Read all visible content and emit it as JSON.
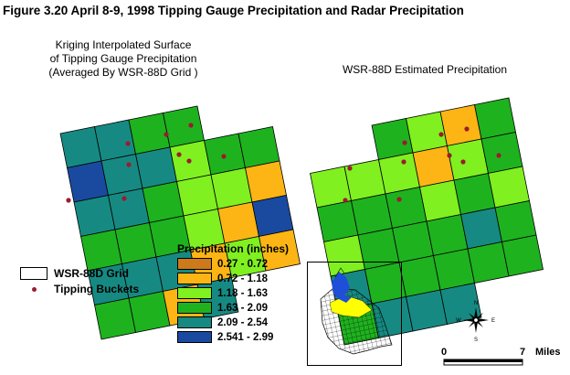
{
  "figure_title": "Figure 3.20    April 8-9, 1998 Tipping Gauge Precipitation and Radar Precipitation",
  "left_panel": {
    "label_lines": [
      "Kriging Interpolated Surface",
      "of Tipping Gauge Precipitation",
      "(Averaged By WSR-88D Grid )"
    ],
    "cells": [
      [
        "c",
        "c",
        "g",
        "g",
        "",
        ""
      ],
      [
        "n",
        "t",
        "t",
        "l",
        "g",
        "g"
      ],
      [
        "t",
        "t",
        "g",
        "l",
        "l",
        "y"
      ],
      [
        "g",
        "g",
        "g",
        "l",
        "y",
        "b"
      ],
      [
        "t",
        "t",
        "t",
        "y",
        "l",
        "y"
      ],
      [
        "g",
        "g",
        "y",
        "t",
        "",
        ""
      ]
    ]
  },
  "right_panel": {
    "label": "WSR-88D Estimated Precipitation",
    "cells": [
      [
        "",
        "",
        "g",
        "l",
        "y",
        "g"
      ],
      [
        "l",
        "l",
        "l",
        "y",
        "l",
        "g"
      ],
      [
        "g",
        "g",
        "g",
        "l",
        "g",
        "l"
      ],
      [
        "l",
        "g",
        "g",
        "g",
        "t",
        "g"
      ],
      [
        "t",
        "g",
        "g",
        "g",
        "g",
        "g"
      ],
      [
        "g",
        "t",
        "t",
        "t",
        "",
        ""
      ]
    ]
  },
  "legend": {
    "title": "Precipitation (inches)",
    "items": [
      {
        "color": "#cc7a1a",
        "label": "0.27 - 0.72"
      },
      {
        "color": "#fcb514",
        "label": "0.72 - 1.18"
      },
      {
        "color": "#80f020",
        "label": "1.18 - 1.63"
      },
      {
        "color": "#1fb21f",
        "label": "1.63 - 2.09"
      },
      {
        "color": "#168a82",
        "label": "2.09 - 2.54"
      },
      {
        "color": "#1a4aa0",
        "label": "2.541 - 2.99"
      }
    ]
  },
  "key": {
    "grid_label": "WSR-88D Grid",
    "buckets_label": "Tipping Buckets"
  },
  "compass": {
    "n": "N",
    "s": "S",
    "e": "E",
    "w": "W"
  },
  "scale": {
    "start": "0",
    "end": "7",
    "unit": "Miles"
  }
}
